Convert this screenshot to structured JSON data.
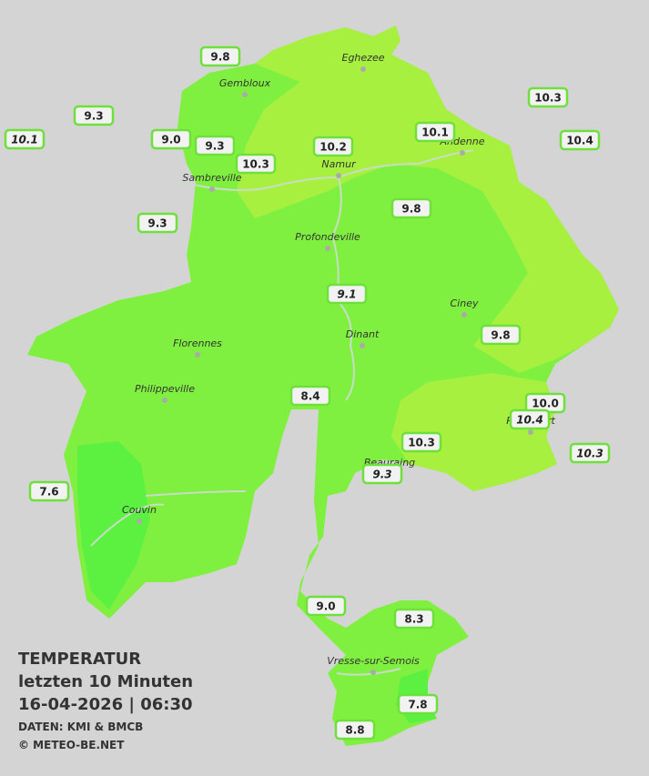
{
  "legend": {
    "title": "TEMPERATUR",
    "period": "letzten 10 Minuten",
    "datetime": "16-04-2026  |  06:30",
    "source": "DATEN: KMI & BMCB",
    "copyright": "© METEO-BE.NET"
  },
  "cities": [
    "Eghezee",
    "Gembloux",
    "Andenne",
    "Namur",
    "Sambreville",
    "Profondeville",
    "Ciney",
    "Dinant",
    "Florennes",
    "Philippeville",
    "Rochefort",
    "Beauraing",
    "Couvin",
    "Vresse-sur-Semois"
  ],
  "stations": [
    "9.8",
    "9.3",
    "10.1",
    "9.0",
    "9.3",
    "10.3",
    "10.2",
    "10.1",
    "10.3",
    "10.4",
    "9.3",
    "9.8",
    "9.1",
    "9.8",
    "8.4",
    "10.0",
    "10.4",
    "10.3",
    "10.3",
    "9.3",
    "7.6",
    "9.0",
    "8.3",
    "7.8",
    "8.8"
  ]
}
